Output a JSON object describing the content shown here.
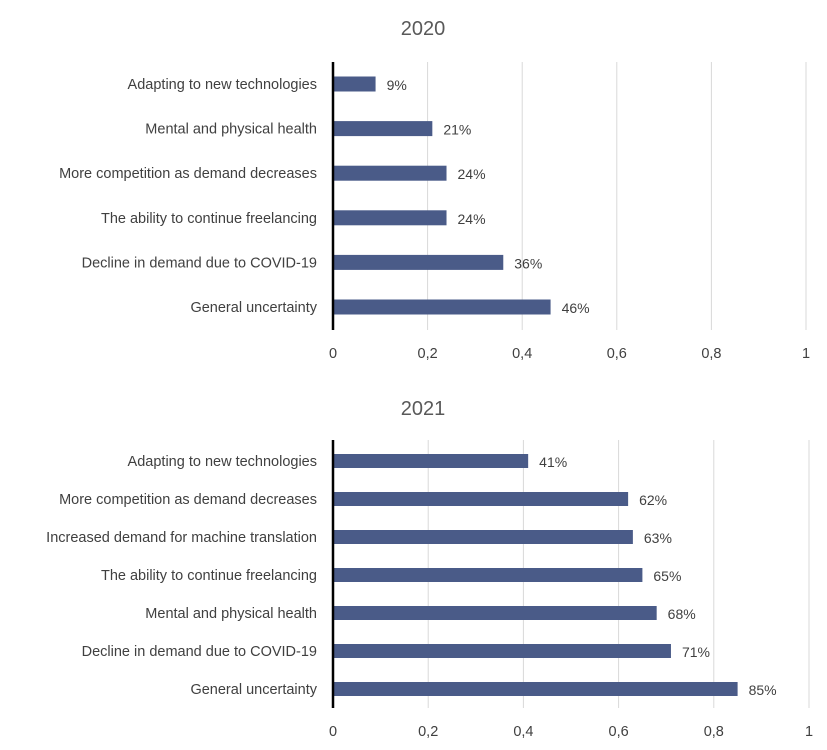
{
  "chart_data": [
    {
      "type": "bar",
      "orientation": "horizontal",
      "title": "2020",
      "categories": [
        "Adapting to new technologies",
        "Mental and physical health",
        "More competition as demand decreases",
        "The ability to continue freelancing",
        "Decline in demand due to COVID-19",
        "General uncertainty"
      ],
      "values": [
        0.09,
        0.21,
        0.24,
        0.24,
        0.36,
        0.46
      ],
      "data_labels": [
        "9%",
        "21%",
        "24%",
        "24%",
        "36%",
        "46%"
      ],
      "xlim": [
        0,
        1
      ],
      "x_ticks": [
        0,
        0.2,
        0.4,
        0.6,
        0.8,
        1
      ],
      "x_tick_labels": [
        "0",
        "0,2",
        "0,4",
        "0,6",
        "0,8",
        "1"
      ],
      "grid": "vertical",
      "legend": "none",
      "bar_color": "#4a5b88"
    },
    {
      "type": "bar",
      "orientation": "horizontal",
      "title": "2021",
      "categories": [
        "Adapting to new technologies",
        "More competition as demand decreases",
        "Increased demand for machine translation",
        "The ability to continue freelancing",
        "Mental and physical health",
        "Decline in demand due to COVID-19",
        "General uncertainty"
      ],
      "values": [
        0.41,
        0.62,
        0.63,
        0.65,
        0.68,
        0.71,
        0.85
      ],
      "data_labels": [
        "41%",
        "62%",
        "63%",
        "65%",
        "68%",
        "71%",
        "85%"
      ],
      "xlim": [
        0,
        1
      ],
      "x_ticks": [
        0,
        0.2,
        0.4,
        0.6,
        0.8,
        1
      ],
      "x_tick_labels": [
        "0",
        "0,2",
        "0,4",
        "0,6",
        "0,8",
        "1"
      ],
      "grid": "vertical",
      "legend": "none",
      "bar_color": "#4a5b88"
    }
  ]
}
